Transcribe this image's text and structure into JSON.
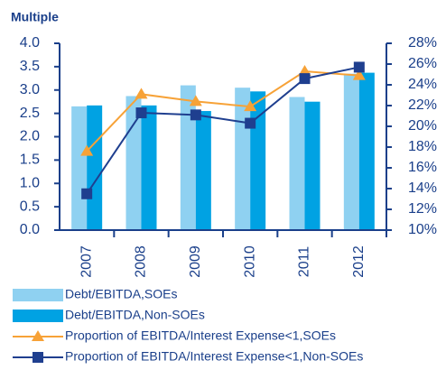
{
  "chart_data": {
    "type": "bar_line",
    "title": "Multiple",
    "categories": [
      "2007",
      "2008",
      "2009",
      "2010",
      "2011",
      "2012"
    ],
    "series": [
      {
        "name": "Debt/EBITDA,SOEs",
        "type": "bar",
        "color": "#8fd1f1",
        "values": [
          2.65,
          2.87,
          3.1,
          3.05,
          2.85,
          3.35
        ]
      },
      {
        "name": "Debt/EBITDA,Non-SOEs",
        "type": "bar",
        "color": "#00a2e3",
        "values": [
          2.67,
          2.67,
          2.55,
          2.97,
          2.75,
          3.37
        ]
      },
      {
        "name": "Proportion of EBITDA/Interest Expense<1,SOEs",
        "type": "line",
        "axis": "y2",
        "marker": "triangle",
        "color": "#f7a237",
        "values": [
          17.6,
          23.1,
          22.4,
          21.9,
          25.3,
          24.9
        ]
      },
      {
        "name": "Proportion of EBITDA/Interest Expense<1,Non-SOEs",
        "type": "line",
        "axis": "y2",
        "marker": "square",
        "color": "#1f3f8f",
        "values": [
          13.5,
          21.3,
          21.1,
          20.3,
          24.6,
          25.7
        ]
      }
    ],
    "ylim": [
      0,
      4
    ],
    "yticks": [
      {
        "value": 0,
        "label": "0.0"
      },
      0.5,
      {
        "value": 1,
        "label": "1.0"
      },
      1.5,
      {
        "value": 2,
        "label": "2.0"
      },
      2.5,
      {
        "value": 3,
        "label": "3.0"
      },
      3.5,
      {
        "value": 4,
        "label": "4.0"
      }
    ],
    "y2lim": [
      10,
      28
    ],
    "y2ticks": [
      {
        "value": 10,
        "label": "10%"
      },
      {
        "value": 12,
        "label": "12%"
      },
      {
        "value": 14,
        "label": "14%"
      },
      {
        "value": 16,
        "label": "16%"
      },
      {
        "value": 18,
        "label": "18%"
      },
      {
        "value": 20,
        "label": "20%"
      },
      {
        "value": 22,
        "label": "22%"
      },
      {
        "value": 24,
        "label": "24%"
      },
      {
        "value": 26,
        "label": "26%"
      },
      {
        "value": 28,
        "label": "28%"
      }
    ]
  }
}
